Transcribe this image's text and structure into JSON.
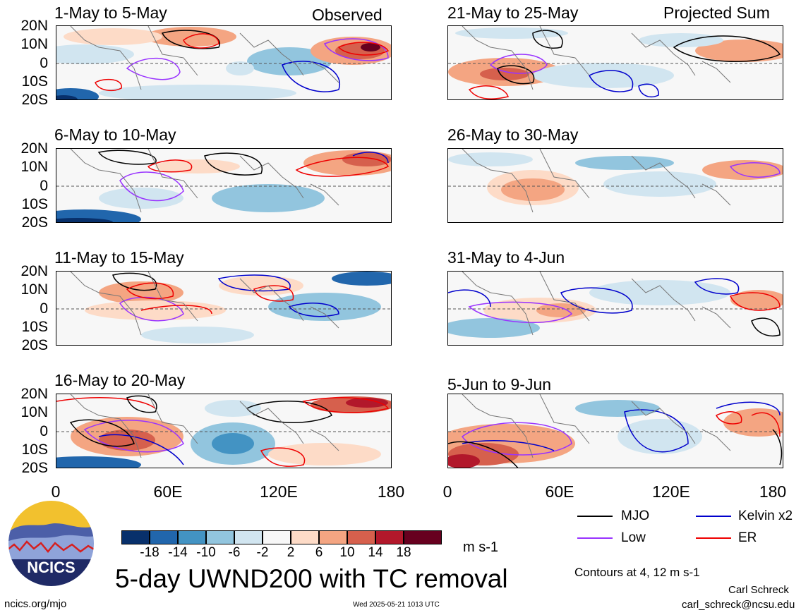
{
  "panels": [
    {
      "title": "1-May to 5-May",
      "corner": "Observed"
    },
    {
      "title": "21-May to 25-May",
      "corner": "Projected Sum"
    },
    {
      "title": "6-May to 10-May",
      "corner": ""
    },
    {
      "title": "26-May to 30-May",
      "corner": ""
    },
    {
      "title": "11-May to 15-May",
      "corner": ""
    },
    {
      "title": "31-May to 4-Jun",
      "corner": ""
    },
    {
      "title": "16-May to 20-May",
      "corner": ""
    },
    {
      "title": "5-Jun to 9-Jun",
      "corner": ""
    }
  ],
  "lat_labels": [
    "20N",
    "10N",
    "0",
    "10S",
    "20S"
  ],
  "lon_labels": [
    "0",
    "60E",
    "120E",
    "180"
  ],
  "colorbar": {
    "colors": [
      "#08306b",
      "#2166ac",
      "#4393c3",
      "#92c5de",
      "#d1e5f0",
      "#f7f7f7",
      "#fddbc7",
      "#f4a582",
      "#d6604d",
      "#b2182b",
      "#67001f"
    ],
    "ticks": [
      "-18",
      "-14",
      "-10",
      "-6",
      "-2",
      "2",
      "6",
      "10",
      "14",
      "18"
    ],
    "units": "m s-1"
  },
  "legend": {
    "items": [
      {
        "label": "MJO",
        "color": "#000000"
      },
      {
        "label": "Kelvin x2",
        "color": "#0000cc"
      },
      {
        "label": "Low",
        "color": "#9933ff"
      },
      {
        "label": "ER",
        "color": "#ee0000"
      }
    ],
    "contours_note": "Contours at 4, 12 m s-1"
  },
  "logo": {
    "text": "NCICS"
  },
  "main_title": "5-day UWND200 with TC removal",
  "footer": {
    "url": "ncics.org/mjo",
    "timestamp": "Wed 2025-05-21 1013 UTC",
    "author": "Carl Schreck",
    "email": "carl_schreck@ncsu.edu"
  }
}
